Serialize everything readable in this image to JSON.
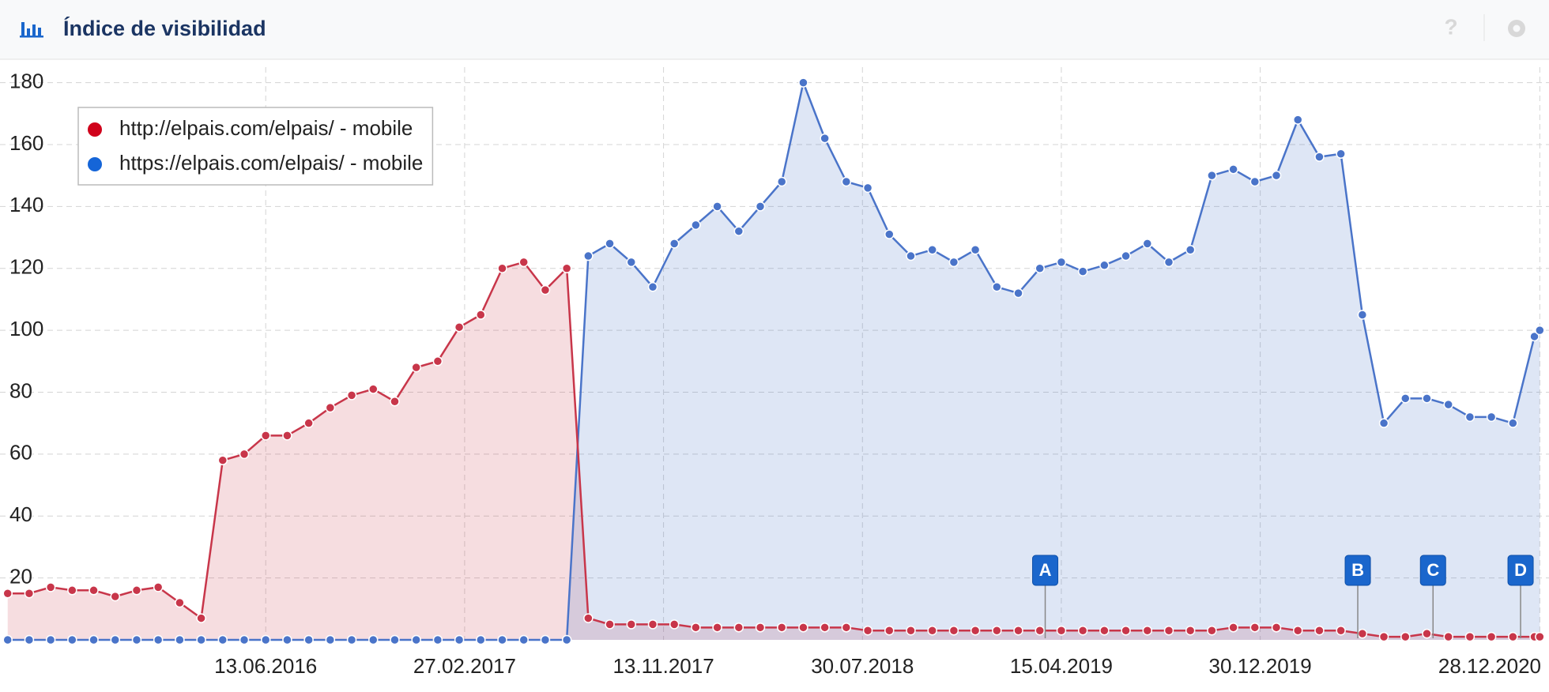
{
  "chart_data": {
    "type": "line",
    "title": "Índice de visibilidad",
    "x": [
      "13.07.2015",
      "10.08.2015",
      "07.09.2015",
      "05.10.2015",
      "02.11.2015",
      "30.11.2015",
      "28.12.2015",
      "25.01.2016",
      "22.02.2016",
      "21.03.2016",
      "18.04.2016",
      "16.05.2016",
      "13.06.2016",
      "11.07.2016",
      "08.08.2016",
      "05.09.2016",
      "03.10.2016",
      "31.10.2016",
      "28.11.2016",
      "26.12.2016",
      "23.01.2017",
      "20.02.2017",
      "20.03.2017",
      "17.04.2017",
      "15.05.2017",
      "12.06.2017",
      "10.07.2017",
      "07.08.2017",
      "04.09.2017",
      "02.10.2017",
      "30.10.2017",
      "27.11.2017",
      "25.12.2017",
      "22.01.2018",
      "19.02.2018",
      "19.03.2018",
      "16.04.2018",
      "14.05.2018",
      "11.06.2018",
      "09.07.2018",
      "06.08.2018",
      "03.09.2018",
      "01.10.2018",
      "29.10.2018",
      "26.11.2018",
      "24.12.2018",
      "21.01.2019",
      "18.02.2019",
      "18.03.2019",
      "15.04.2019",
      "13.05.2019",
      "10.06.2019",
      "08.07.2019",
      "05.08.2019",
      "02.09.2019",
      "30.09.2019",
      "28.10.2019",
      "25.11.2019",
      "23.12.2019",
      "20.01.2020",
      "17.02.2020",
      "16.03.2020",
      "13.04.2020",
      "11.05.2020",
      "08.06.2020",
      "06.07.2020",
      "03.08.2020",
      "31.08.2020",
      "28.09.2020",
      "26.10.2020",
      "23.11.2020",
      "21.12.2020",
      "28.12.2020"
    ],
    "series": [
      {
        "name": "http://elpais.com/elpais/ - mobile",
        "color": "#c8364a",
        "legend_color": "#d0021b",
        "values": [
          15,
          15,
          17,
          16,
          16,
          14,
          16,
          17,
          12,
          7,
          58,
          60,
          66,
          66,
          70,
          75,
          79,
          81,
          77,
          88,
          90,
          101,
          105,
          120,
          122,
          113,
          120,
          7,
          5,
          5,
          5,
          5,
          4,
          4,
          4,
          4,
          4,
          4,
          4,
          4,
          3,
          3,
          3,
          3,
          3,
          3,
          3,
          3,
          3,
          3,
          3,
          3,
          3,
          3,
          3,
          3,
          3,
          4,
          4,
          4,
          3,
          3,
          3,
          2,
          1,
          1,
          2,
          1,
          1,
          1,
          1,
          1,
          1
        ]
      },
      {
        "name": "https://elpais.com/elpais/ - mobile",
        "color": "#4a74c9",
        "legend_color": "#1565d8",
        "values": [
          0,
          0,
          0,
          0,
          0,
          0,
          0,
          0,
          0,
          0,
          0,
          0,
          0,
          0,
          0,
          0,
          0,
          0,
          0,
          0,
          0,
          0,
          0,
          0,
          0,
          0,
          0,
          124,
          128,
          122,
          114,
          128,
          134,
          140,
          132,
          140,
          148,
          180,
          162,
          148,
          146,
          131,
          124,
          126,
          122,
          126,
          114,
          112,
          120,
          122,
          119,
          121,
          124,
          128,
          122,
          126,
          150,
          152,
          148,
          150,
          168,
          156,
          157,
          105,
          70,
          78,
          78,
          76,
          72,
          72,
          70,
          98,
          100
        ]
      }
    ],
    "xlim": [
      "03.07.2015",
      "09.01.2021"
    ],
    "xticks": [
      "13.06.2016",
      "27.02.2017",
      "13.11.2017",
      "30.07.2018",
      "15.04.2019",
      "30.12.2019",
      "28.12.2020"
    ],
    "ylim": [
      0,
      185
    ],
    "yticks": [
      20,
      40,
      60,
      80,
      100,
      120,
      140,
      160,
      180
    ],
    "grid": true,
    "legend": "top-left",
    "events": [
      {
        "label": "A",
        "x": "25.03.2019"
      },
      {
        "label": "B",
        "x": "05.05.2020"
      },
      {
        "label": "C",
        "x": "11.08.2020"
      },
      {
        "label": "D",
        "x": "03.12.2020"
      }
    ]
  }
}
